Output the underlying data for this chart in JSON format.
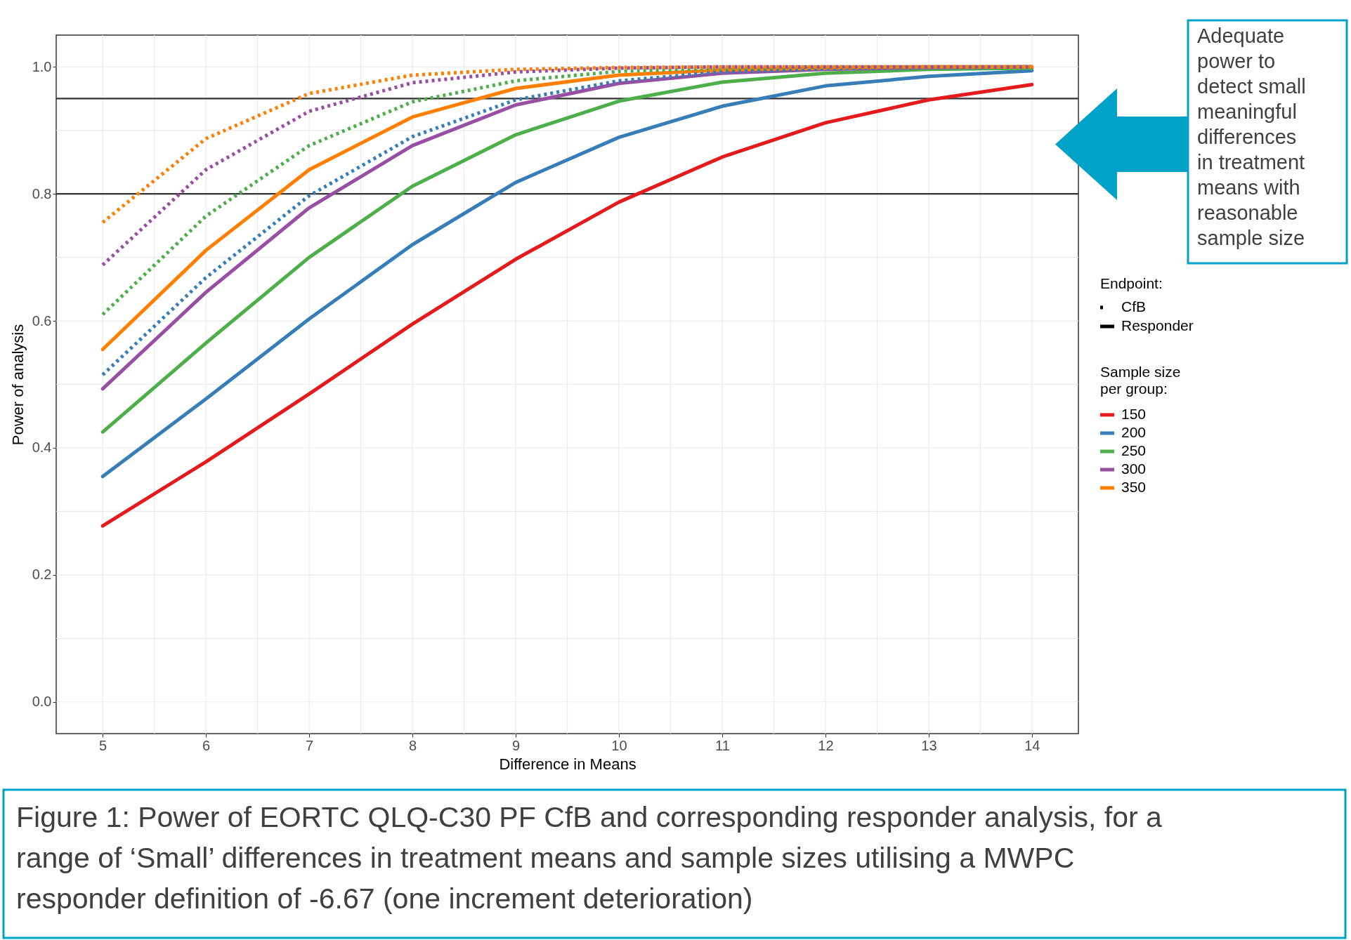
{
  "chart_data": {
    "type": "line",
    "xlabel": "Difference in Means",
    "ylabel": "Power of analysis",
    "legend_title": "Sample size per group:",
    "x": [
      5,
      6,
      7,
      8,
      9,
      10,
      11,
      12,
      13,
      14
    ],
    "series": [
      {
        "name": "150",
        "color": "#e41a1c",
        "line_style": "solid",
        "values": [
          0.277,
          0.378,
          0.485,
          0.595,
          0.697,
          0.787,
          0.858,
          0.912,
          0.948,
          0.972
        ]
      },
      {
        "name": "200",
        "color": "#377eb8",
        "line_style": "solid",
        "values": [
          0.355,
          0.477,
          0.603,
          0.72,
          0.818,
          0.889,
          0.938,
          0.97,
          0.985,
          0.994
        ]
      },
      {
        "name": "250",
        "color": "#4daf4a",
        "line_style": "solid",
        "values": [
          0.425,
          0.565,
          0.7,
          0.812,
          0.893,
          0.946,
          0.976,
          0.99,
          0.996,
          0.998
        ]
      },
      {
        "name": "300",
        "color": "#984ea3",
        "line_style": "solid",
        "values": [
          0.493,
          0.645,
          0.778,
          0.876,
          0.94,
          0.974,
          0.99,
          0.996,
          0.999,
          1.0
        ]
      },
      {
        "name": "350",
        "color": "#ff7f00",
        "line_style": "solid",
        "values": [
          0.555,
          0.711,
          0.838,
          0.921,
          0.966,
          0.987,
          0.995,
          0.998,
          1.0,
          1.0
        ]
      },
      {
        "color": "#377eb8",
        "line_style": "dotted",
        "values": [
          0.515,
          0.668,
          0.797,
          0.89,
          0.948,
          0.978,
          0.992,
          0.997,
          0.999,
          1.0
        ]
      },
      {
        "color": "#4daf4a",
        "line_style": "dotted",
        "values": [
          0.61,
          0.765,
          0.876,
          0.945,
          0.978,
          0.993,
          0.998,
          1.0,
          1.0,
          1.0
        ]
      },
      {
        "color": "#984ea3",
        "line_style": "dotted",
        "values": [
          0.688,
          0.838,
          0.93,
          0.975,
          0.992,
          0.998,
          1.0,
          1.0,
          1.0,
          1.0
        ]
      },
      {
        "color": "#ff7f00",
        "line_style": "dotted",
        "values": [
          0.755,
          0.887,
          0.958,
          0.987,
          0.996,
          0.999,
          1.0,
          1.0,
          1.0,
          1.0
        ]
      }
    ],
    "xlim": [
      4.55,
      14.45
    ],
    "ylim": [
      -0.05,
      1.05
    ],
    "xticks": [
      5,
      {
        "value": 5.5,
        "label": null
      },
      6,
      {
        "value": 6.5,
        "label": null
      },
      7,
      {
        "value": 7.5,
        "label": null
      },
      8,
      {
        "value": 8.5,
        "label": null
      },
      9,
      {
        "value": 9.5,
        "label": null
      },
      10,
      {
        "value": 10.5,
        "label": null
      },
      11,
      {
        "value": 11.5,
        "label": null
      },
      12,
      {
        "value": 12.5,
        "label": null
      },
      13,
      {
        "value": 13.5,
        "label": null
      },
      14
    ],
    "yticks": [
      {
        "value": 0,
        "label": "0.0"
      },
      {
        "value": 0.1,
        "label": null
      },
      0.2,
      {
        "value": 0.3,
        "label": null
      },
      0.4,
      {
        "value": 0.5,
        "label": null
      },
      0.6,
      {
        "value": 0.7,
        "label": null
      },
      0.8,
      {
        "value": 0.9,
        "label": null
      },
      {
        "value": 1,
        "label": "1.0"
      }
    ],
    "grid": true,
    "legend": "right",
    "marker": "none",
    "ref_lines": [
      {
        "axis": "y",
        "value": 0.95,
        "color": "#333333"
      },
      {
        "axis": "y",
        "value": 0.8,
        "color": "#333333"
      }
    ],
    "annotations": [
      "Adequate power to detect small meaningful differences in treatment means with reasonable sample size",
      "Figure 1: Power of EORTC QLQ-C30 PF CfB and corresponding responder analysis, for a range of ‘Small’ differences in treatment means and sample sizes utilising a MWPC responder definition of -6.67 (one increment deterioration)",
      "Endpoint:",
      "CfB",
      "Responder"
    ]
  }
}
